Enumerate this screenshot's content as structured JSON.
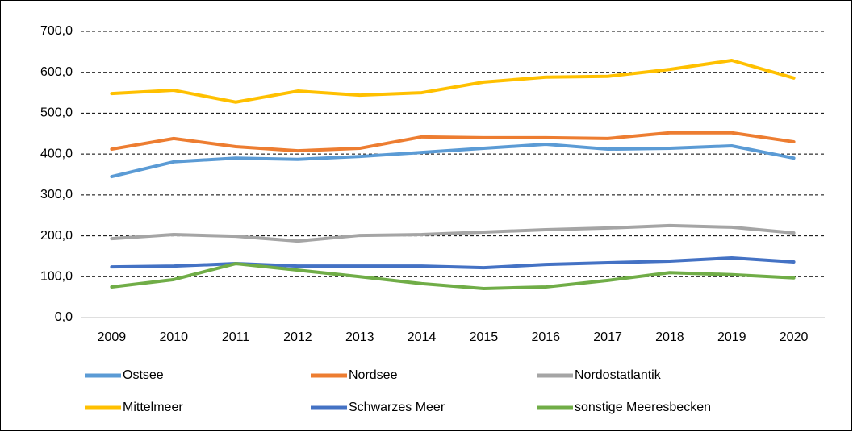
{
  "chart_data": {
    "type": "line",
    "categories": [
      "2009",
      "2010",
      "2011",
      "2012",
      "2013",
      "2014",
      "2015",
      "2016",
      "2017",
      "2018",
      "2019",
      "2020"
    ],
    "series": [
      {
        "name": "Ostsee",
        "color": "#5b9bd5",
        "values": [
          345,
          381,
          390,
          387,
          394,
          404,
          414,
          424,
          412,
          414,
          420,
          390
        ]
      },
      {
        "name": "Nordsee",
        "color": "#ed7d31",
        "values": [
          412,
          438,
          418,
          408,
          414,
          442,
          440,
          440,
          438,
          452,
          452,
          430
        ]
      },
      {
        "name": "Nordostatlantik",
        "color": "#a5a5a5",
        "values": [
          193,
          203,
          199,
          187,
          201,
          203,
          209,
          215,
          219,
          225,
          221,
          207
        ]
      },
      {
        "name": "Mittelmeer",
        "color": "#ffc000",
        "values": [
          548,
          556,
          527,
          554,
          544,
          550,
          576,
          588,
          590,
          607,
          629,
          586
        ]
      },
      {
        "name": "Schwarzes Meer",
        "color": "#4472c4",
        "values": [
          124,
          126,
          132,
          126,
          126,
          126,
          122,
          130,
          134,
          138,
          146,
          136
        ]
      },
      {
        "name": "sonstige Meeresbecken",
        "color": "#70ad47",
        "values": [
          75,
          93,
          132,
          116,
          100,
          83,
          71,
          75,
          91,
          110,
          105,
          97
        ]
      }
    ],
    "ylim": [
      0,
      700
    ],
    "yticks": [
      {
        "value": 0,
        "label": "0,0"
      },
      {
        "value": 100,
        "label": "100,0"
      },
      {
        "value": 200,
        "label": "200,0"
      },
      {
        "value": 300,
        "label": "300,0"
      },
      {
        "value": 400,
        "label": "400,0"
      },
      {
        "value": 500,
        "label": "500,0"
      },
      {
        "value": 600,
        "label": "600,0"
      },
      {
        "value": 700,
        "label": "700,0"
      }
    ],
    "grid": true,
    "legend": "bottom"
  }
}
